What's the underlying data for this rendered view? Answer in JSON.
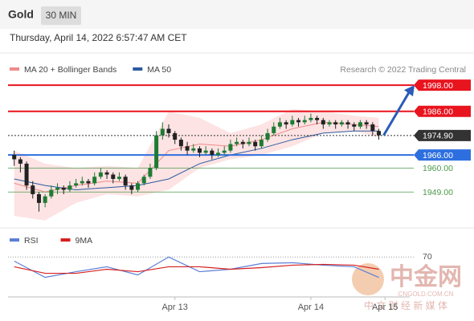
{
  "header": {
    "symbol": "Gold",
    "interval": "30 MIN",
    "timestamp": "Thursday, April 14, 2022 6:57:47 AM CET"
  },
  "chart_data": [
    {
      "type": "candlestick",
      "legend": [
        {
          "name": "MA 20 + Bollinger Bands",
          "color": "#f08a8a"
        },
        {
          "name": "MA 50",
          "color": "#2c5aa0"
        }
      ],
      "credit": "Research © 2022 Trading Central",
      "up_color": "#1e7b34",
      "down_color": "#222222",
      "xlim": [
        -1,
        64
      ],
      "xticks": [
        {
          "value": 26,
          "label": "Apr 13"
        },
        {
          "value": 48,
          "label": "Apr 14"
        },
        {
          "value": 60,
          "label": "Apr 15"
        }
      ],
      "ylim": [
        1934,
        2015
      ],
      "candles": [
        [
          1966,
          1968,
          1961,
          1964
        ],
        [
          1964,
          1965,
          1958,
          1962
        ],
        [
          1962,
          1963,
          1950,
          1952
        ],
        [
          1952,
          1954,
          1946,
          1948
        ],
        [
          1948,
          1949,
          1940,
          1944
        ],
        [
          1944,
          1948,
          1942,
          1947
        ],
        [
          1947,
          1952,
          1946,
          1950
        ],
        [
          1950,
          1953,
          1948,
          1951
        ],
        [
          1951,
          1952,
          1948,
          1950
        ],
        [
          1950,
          1954,
          1949,
          1952
        ],
        [
          1952,
          1955,
          1951,
          1953
        ],
        [
          1953,
          1956,
          1952,
          1954
        ],
        [
          1954,
          1955,
          1951,
          1953
        ],
        [
          1953,
          1958,
          1952,
          1956
        ],
        [
          1956,
          1960,
          1955,
          1958
        ],
        [
          1958,
          1959,
          1955,
          1957
        ],
        [
          1957,
          1958,
          1953,
          1955
        ],
        [
          1955,
          1958,
          1954,
          1956
        ],
        [
          1956,
          1957,
          1950,
          1952
        ],
        [
          1952,
          1953,
          1948,
          1950
        ],
        [
          1950,
          1954,
          1949,
          1953
        ],
        [
          1953,
          1957,
          1952,
          1956
        ],
        [
          1956,
          1962,
          1955,
          1960
        ],
        [
          1960,
          1977,
          1959,
          1975
        ],
        [
          1975,
          1981,
          1973,
          1978
        ],
        [
          1978,
          1980,
          1974,
          1976
        ],
        [
          1976,
          1977,
          1971,
          1973
        ],
        [
          1973,
          1974,
          1968,
          1970
        ],
        [
          1970,
          1972,
          1966,
          1968
        ],
        [
          1968,
          1971,
          1967,
          1969
        ],
        [
          1969,
          1970,
          1965,
          1967
        ],
        [
          1967,
          1970,
          1966,
          1968
        ],
        [
          1968,
          1969,
          1964,
          1966
        ],
        [
          1966,
          1969,
          1965,
          1967
        ],
        [
          1967,
          1970,
          1966,
          1968
        ],
        [
          1968,
          1973,
          1967,
          1971
        ],
        [
          1971,
          1974,
          1970,
          1972
        ],
        [
          1972,
          1973,
          1969,
          1971
        ],
        [
          1971,
          1974,
          1970,
          1972
        ],
        [
          1972,
          1973,
          1968,
          1970
        ],
        [
          1970,
          1975,
          1969,
          1973
        ],
        [
          1973,
          1978,
          1972,
          1976
        ],
        [
          1976,
          1981,
          1975,
          1979
        ],
        [
          1979,
          1983,
          1978,
          1981
        ],
        [
          1981,
          1982,
          1978,
          1980
        ],
        [
          1980,
          1984,
          1979,
          1982
        ],
        [
          1982,
          1983,
          1979,
          1981
        ],
        [
          1981,
          1984,
          1980,
          1982
        ],
        [
          1982,
          1985,
          1981,
          1983
        ],
        [
          1983,
          1984,
          1980,
          1982
        ],
        [
          1982,
          1983,
          1978,
          1980
        ],
        [
          1980,
          1982,
          1979,
          1981
        ],
        [
          1981,
          1982,
          1978,
          1980
        ],
        [
          1980,
          1982,
          1979,
          1981
        ],
        [
          1981,
          1982,
          1978,
          1980
        ],
        [
          1980,
          1981,
          1977,
          1979
        ],
        [
          1979,
          1982,
          1978,
          1981
        ],
        [
          1981,
          1982,
          1978,
          1980
        ],
        [
          1980,
          1981,
          1975,
          1977
        ],
        [
          1977,
          1978,
          1973,
          1975
        ]
      ],
      "overlays": {
        "x": [
          0,
          5,
          10,
          15,
          20,
          25,
          30,
          35,
          40,
          45,
          50,
          55,
          59
        ],
        "bb_upper": [
          1968,
          1962,
          1960,
          1961,
          1960,
          1986,
          1983,
          1976,
          1980,
          1987,
          1986,
          1984,
          1983
        ],
        "bb_lower": [
          1938,
          1936,
          1944,
          1948,
          1947,
          1950,
          1960,
          1964,
          1966,
          1970,
          1976,
          1977,
          1974
        ],
        "ma20": [
          1953,
          1949,
          1952,
          1954,
          1953,
          1968,
          1971,
          1970,
          1973,
          1978,
          1981,
          1980,
          1979
        ],
        "ma50": [
          1955,
          1952,
          1950,
          1951,
          1952,
          1955,
          1962,
          1966,
          1969,
          1973,
          1976,
          1977,
          1977
        ]
      },
      "levels": [
        {
          "value": 1998,
          "label": "1998.00",
          "color": "#e8141e",
          "style": "solid",
          "box": true
        },
        {
          "value": 1986,
          "label": "1986.00",
          "color": "#e8141e",
          "style": "solid",
          "box": true
        },
        {
          "value": 1974.9,
          "label": "1974.90",
          "color": "#333333",
          "style": "dotted",
          "box": true
        },
        {
          "value": 1966,
          "label": "1966.00",
          "color": "#2e6fe0",
          "style": "solid",
          "box": true
        },
        {
          "value": 1960,
          "label": "1960.00",
          "color": "#4c9a4c",
          "style": "thin",
          "box": false
        },
        {
          "value": 1949,
          "label": "1949.00",
          "color": "#4c9a4c",
          "style": "thin",
          "box": false
        }
      ]
    },
    {
      "type": "line",
      "x": [
        0,
        5,
        10,
        15,
        20,
        25,
        30,
        35,
        40,
        45,
        50,
        55,
        59
      ],
      "xlim": [
        -1,
        64
      ],
      "ylim": [
        20,
        90
      ],
      "yticks": [
        70
      ],
      "series": [
        {
          "name": "RSI",
          "color": "#5b7fd6",
          "values": [
            65,
            45,
            52,
            58,
            48,
            70,
            52,
            55,
            62,
            63,
            60,
            58,
            45
          ]
        },
        {
          "name": "9MA",
          "color": "#d62020",
          "values": [
            58,
            50,
            50,
            55,
            52,
            58,
            58,
            55,
            57,
            60,
            61,
            60,
            55
          ]
        }
      ]
    }
  ],
  "watermark": {
    "brand": "中金网",
    "url": "CNGOLD.COM.CN",
    "tagline": "中 文 财 经 新 媒 体"
  }
}
